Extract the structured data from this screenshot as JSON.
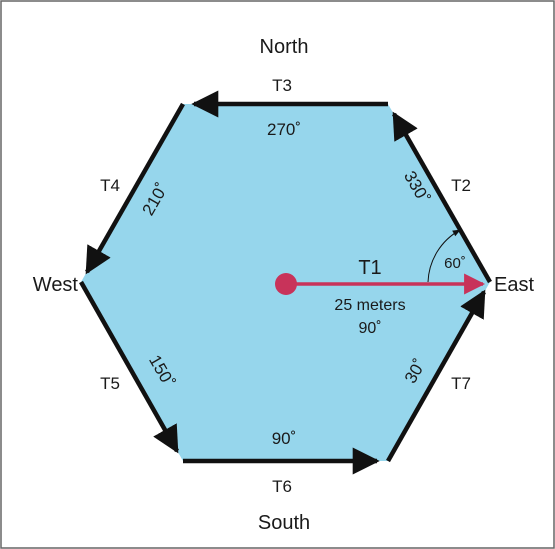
{
  "directions": {
    "north": "North",
    "south": "South",
    "east": "East",
    "west": "West"
  },
  "transects": {
    "t1": "T1",
    "t2": "T2",
    "t3": "T3",
    "t4": "T4",
    "t5": "T5",
    "t6": "T6",
    "t7": "T7"
  },
  "bearings": {
    "t2": "330˚",
    "t3": "270˚",
    "t4": "210˚",
    "t5": "150˚",
    "t6": "90˚",
    "t7": "30˚"
  },
  "center_transect": {
    "distance": "25 meters",
    "bearing": "90˚"
  },
  "angle_label": "60˚",
  "colors": {
    "plot_fill": "#96d6ec",
    "arrow_red": "#c8335a",
    "edge": "#111111",
    "frame": "#666666"
  }
}
